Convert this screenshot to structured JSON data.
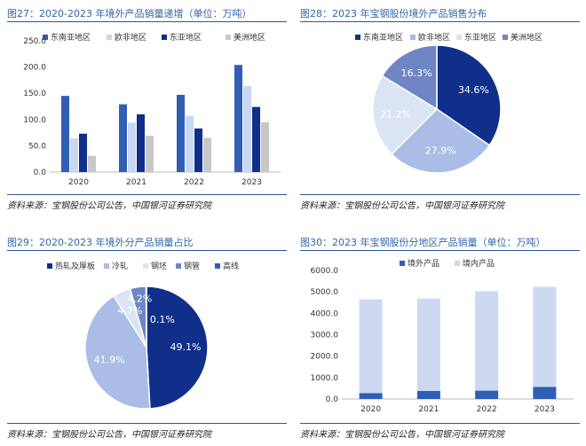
{
  "chart_data": [
    {
      "type": "bar",
      "title": "图27：2020-2023 年境外产品销量递增（单位：万吨）",
      "source": "资料来源：宝钢股份公司公告，中国银河证券研究院",
      "categories": [
        "2020",
        "2021",
        "2022",
        "2023"
      ],
      "series": [
        {
          "name": "东南亚地区",
          "color": "#2f5fb3",
          "values": [
            145,
            129,
            147,
            204
          ]
        },
        {
          "name": "欧非地区",
          "color": "#c9d7f0",
          "values": [
            64,
            94,
            107,
            164
          ]
        },
        {
          "name": "东亚地区",
          "color": "#0f2f8a",
          "values": [
            73,
            110,
            83,
            124
          ]
        },
        {
          "name": "美洲地区",
          "color": "#c8c8c8",
          "values": [
            31,
            69,
            65,
            95
          ]
        }
      ],
      "yticks": [
        "0.0",
        "50.0",
        "100.0",
        "150.0",
        "200.0",
        "250.0"
      ],
      "ylim": [
        0,
        250
      ],
      "legend": "top"
    },
    {
      "type": "pie",
      "title": "图28：2023 年宝钢股份境外产品销售分布",
      "source": "资料来源：宝钢股份公司公告，中国银河证券研究院",
      "labels": [
        "东南亚地区",
        "欧非地区",
        "东亚地区",
        "美洲地区"
      ],
      "values": [
        34.6,
        27.9,
        21.2,
        16.3
      ],
      "value_labels": [
        "34.6%",
        "27.9%",
        "21.2%",
        "16.3%"
      ],
      "colors": [
        "#0f2f8a",
        "#a9bde6",
        "#dbe4f4",
        "#6f86c4"
      ],
      "label_colors": [
        "#ffffff",
        "#ffffff",
        "#ffffff",
        "#ffffff"
      ],
      "legend": "top"
    },
    {
      "type": "pie",
      "title": "图29：2020-2023 年境外分产品销量占比",
      "source": "资料来源：宝钢股份公司公告，中国银河证券研究院",
      "labels": [
        "热轧及厚板",
        "冷轧",
        "钢坯",
        "钢管",
        "高线"
      ],
      "values": [
        49.1,
        41.9,
        4.7,
        4.2,
        0.1
      ],
      "value_labels": [
        "49.1%",
        "41.9%",
        "4.7%",
        "4.2%",
        "0.1%"
      ],
      "colors": [
        "#0f2f8a",
        "#a9bde6",
        "#dbe4f4",
        "#6f86c4",
        "#2f5fb3"
      ],
      "label_colors": [
        "#ffffff",
        "#ffffff",
        "#ffffff",
        "#ffffff",
        "#ffffff"
      ],
      "legend": "top"
    },
    {
      "type": "bar",
      "stacked": true,
      "title": "图30：2023 年宝钢股份分地区产品销量（单位：万吨）",
      "source": "资料来源：宝钢股份公司公告，中国银河证券研究院",
      "categories": [
        "2020",
        "2021",
        "2022",
        "2023"
      ],
      "series": [
        {
          "name": "境外产品",
          "color": "#2f5fb3",
          "values": [
            280,
            380,
            390,
            570
          ]
        },
        {
          "name": "境内产品",
          "color": "#cdd9f1",
          "values": [
            4370,
            4310,
            4640,
            4660
          ]
        }
      ],
      "yticks": [
        "0.0",
        "1000.0",
        "2000.0",
        "3000.0",
        "4000.0",
        "5000.0",
        "6000.0"
      ],
      "ylim": [
        0,
        6000
      ],
      "legend": "top"
    }
  ]
}
